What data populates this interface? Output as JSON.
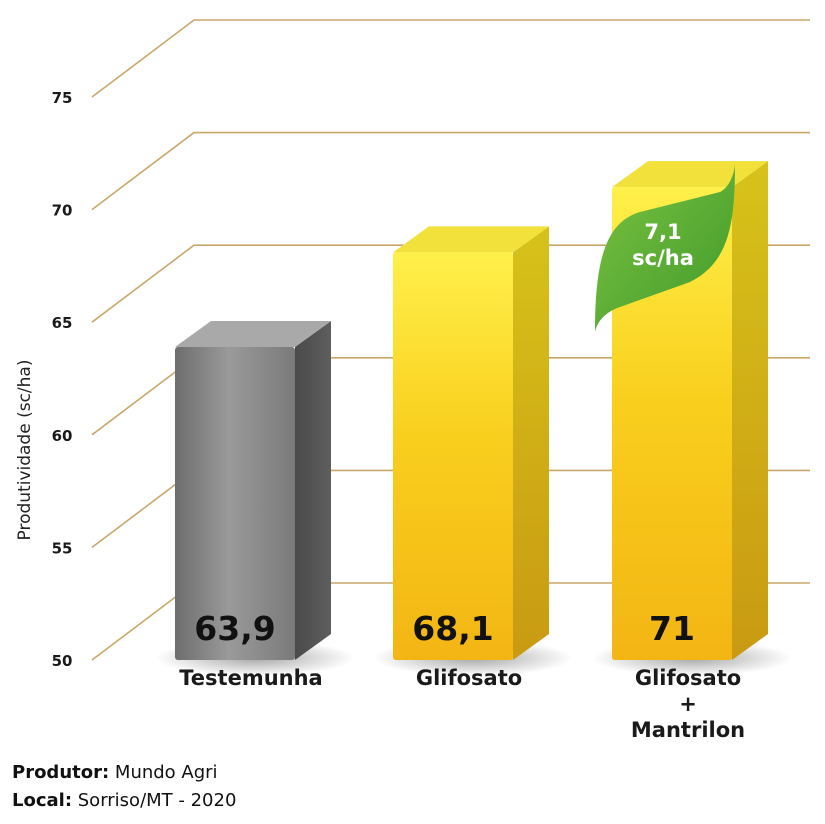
{
  "chart_data": {
    "type": "bar",
    "ylabel": "Produtividade (sc/ha)",
    "ylim": [
      50,
      75
    ],
    "yticks": [
      50,
      55,
      60,
      65,
      70,
      75
    ],
    "categories": [
      "Testemunha",
      "Glifosato",
      "Glifosato + Mantrilon"
    ],
    "category_lines": [
      [
        "Testemunha"
      ],
      [
        "Glifosato"
      ],
      [
        "Glifosato",
        "+",
        "Mantrilon"
      ]
    ],
    "values": [
      63.9,
      68.1,
      71
    ],
    "value_labels": [
      "63,9",
      "68,1",
      "71"
    ],
    "bar_colors": [
      "#8a8a8a",
      "#f7c51c",
      "#f7c51c"
    ],
    "grid": true,
    "annotation": {
      "lines": [
        "7,1",
        "sc/ha"
      ],
      "color": "#5aab2e"
    }
  },
  "footer": {
    "producer_label": "Produtor:",
    "producer_value": " Mundo Agri",
    "location_label": "Local:",
    "location_value": " Sorriso/MT - 2020"
  }
}
